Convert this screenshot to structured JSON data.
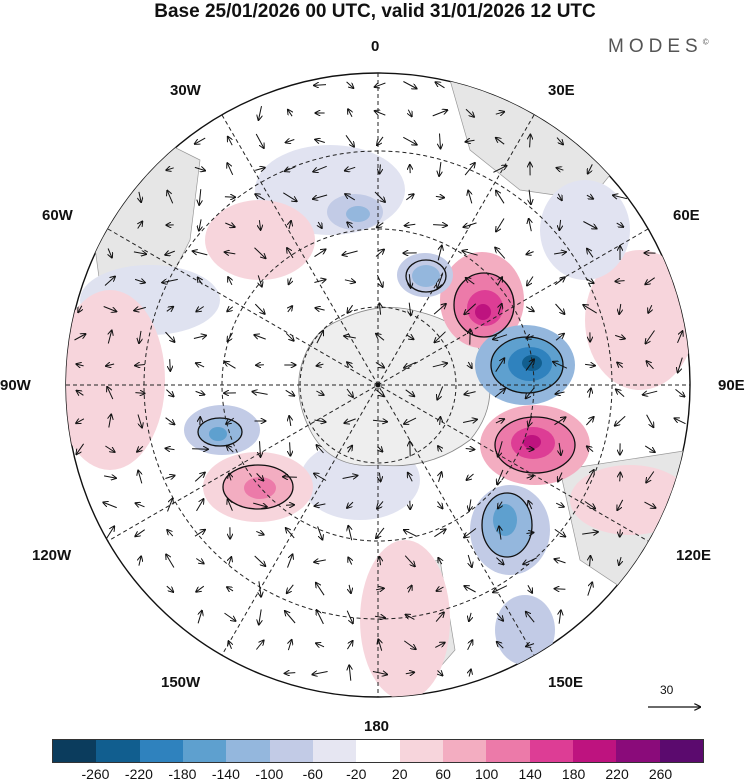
{
  "header": {
    "title": "Base 25/01/2026 00 UTC, valid 31/01/2026 12 UTC",
    "brand": "MODES",
    "brand_mark": "©"
  },
  "map": {
    "projection": "south-polar-stereographic",
    "longitude_labels": {
      "top": "0",
      "top_right": "30E",
      "upper_right": "60E",
      "right": "90E",
      "lower_right": "120E",
      "bottom_right": "150E",
      "bottom": "180",
      "bottom_left": "150W",
      "lower_left": "120W",
      "left": "90W",
      "upper_left": "60W",
      "top_left": "30W"
    },
    "reference_vector_label": "30"
  },
  "colorbar": {
    "tick_labels": [
      "-260",
      "-220",
      "-180",
      "-140",
      "-100",
      "-60",
      "-20",
      "20",
      "60",
      "100",
      "140",
      "180",
      "220",
      "260"
    ],
    "colors": [
      "#0b3c5d",
      "#115e8f",
      "#2f82be",
      "#5ea0cf",
      "#94b7dd",
      "#c2cbe6",
      "#e6e6f2",
      "#ffffff",
      "#f7d5dc",
      "#f3adc1",
      "#ec7aa9",
      "#dd3d95",
      "#be137f",
      "#8a0b7a",
      "#5b0a6e"
    ]
  },
  "anomalies": [
    {
      "name": "pos-anomaly-30e",
      "sign": "positive",
      "max_level": "180"
    },
    {
      "name": "neg-anomaly-75e",
      "sign": "negative",
      "max_level": "-180"
    },
    {
      "name": "pos-anomaly-100e",
      "sign": "positive",
      "max_level": "180"
    },
    {
      "name": "neg-anomaly-140e",
      "sign": "negative",
      "max_level": "-140"
    },
    {
      "name": "pos-anomaly-120w",
      "sign": "positive",
      "max_level": "140"
    },
    {
      "name": "neg-anomaly-100w",
      "sign": "negative",
      "max_level": "-100"
    }
  ]
}
